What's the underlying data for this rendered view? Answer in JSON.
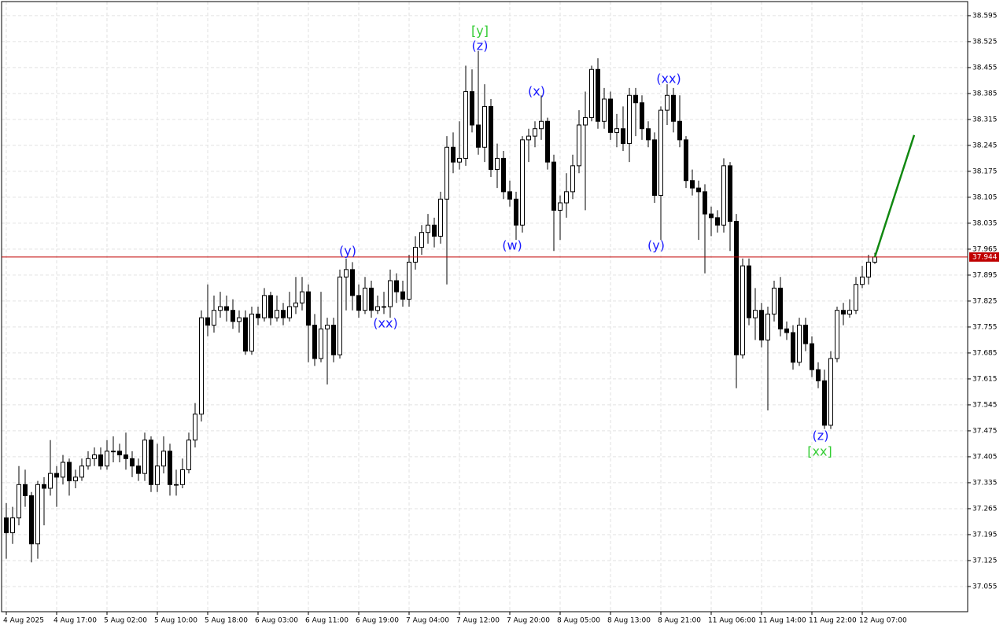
{
  "chart_data": {
    "type": "candlestick",
    "categories": [
      "4 Aug 2025",
      null,
      null,
      null,
      null,
      null,
      null,
      null,
      "4 Aug 17:00",
      null,
      null,
      null,
      null,
      null,
      null,
      null,
      "5 Aug 02:00",
      null,
      null,
      null,
      null,
      null,
      null,
      null,
      "5 Aug 10:00",
      null,
      null,
      null,
      null,
      null,
      null,
      null,
      "5 Aug 18:00",
      null,
      null,
      null,
      null,
      null,
      null,
      null,
      "6 Aug 03:00",
      null,
      null,
      null,
      null,
      null,
      null,
      null,
      "6 Aug 11:00",
      null,
      null,
      null,
      null,
      null,
      null,
      null,
      "6 Aug 19:00",
      null,
      null,
      null,
      null,
      null,
      null,
      null,
      "7 Aug 04:00",
      null,
      null,
      null,
      null,
      null,
      null,
      null,
      "7 Aug 12:00",
      null,
      null,
      null,
      null,
      null,
      null,
      null,
      "7 Aug 20:00",
      null,
      null,
      null,
      null,
      null,
      null,
      null,
      "8 Aug 05:00",
      null,
      null,
      null,
      null,
      null,
      null,
      null,
      "8 Aug 13:00",
      null,
      null,
      null,
      null,
      null,
      null,
      null,
      "8 Aug 21:00",
      null,
      null,
      null,
      null,
      null,
      null,
      null,
      "11 Aug 06:00",
      null,
      null,
      null,
      null,
      null,
      null,
      null,
      "11 Aug 14:00",
      null,
      null,
      null,
      null,
      null,
      null,
      null,
      "11 Aug 22:00",
      null,
      null,
      null,
      null,
      null,
      null,
      null,
      "12 Aug 07:00",
      null,
      null
    ],
    "open": [
      37.24,
      37.2,
      37.24,
      37.33,
      37.3,
      37.17,
      37.33,
      37.32,
      37.36,
      37.35,
      37.39,
      37.34,
      37.35,
      37.38,
      37.4,
      37.41,
      37.38,
      37.42,
      37.42,
      37.41,
      37.4,
      37.38,
      37.36,
      37.45,
      37.33,
      37.38,
      37.42,
      37.33,
      37.33,
      37.37,
      37.45,
      37.52,
      37.78,
      37.76,
      37.8,
      37.81,
      37.8,
      37.77,
      37.78,
      37.69,
      37.79,
      37.78,
      37.84,
      37.78,
      37.8,
      37.78,
      37.81,
      37.82,
      37.85,
      37.76,
      37.67,
      37.75,
      37.76,
      37.68,
      37.89,
      37.91,
      37.84,
      37.8,
      37.86,
      37.8,
      37.81,
      37.81,
      37.88,
      37.85,
      37.83,
      37.93,
      37.97,
      38.01,
      38.03,
      38.0,
      38.1,
      38.24,
      38.2,
      38.21,
      38.39,
      38.3,
      38.24,
      38.35,
      38.18,
      38.21,
      38.12,
      38.1,
      38.03,
      38.26,
      38.27,
      38.29,
      38.31,
      38.2,
      38.07,
      38.09,
      38.12,
      38.19,
      38.3,
      38.32,
      38.45,
      38.31,
      38.37,
      38.28,
      38.29,
      38.25,
      38.38,
      38.36,
      38.29,
      38.26,
      38.11,
      38.34,
      38.38,
      38.31,
      38.26,
      38.15,
      38.13,
      38.12,
      38.06,
      38.05,
      38.03,
      38.19,
      38.04,
      37.68,
      37.92,
      37.78,
      37.8,
      37.72,
      37.79,
      37.86,
      37.75,
      37.74,
      37.66,
      37.76,
      37.71,
      37.64,
      37.61,
      37.49,
      37.67,
      37.8,
      37.79,
      37.8,
      37.87,
      37.89,
      37.93
    ],
    "high": [
      37.28,
      37.27,
      37.38,
      37.37,
      37.31,
      37.34,
      37.35,
      37.45,
      37.38,
      37.41,
      37.4,
      37.37,
      37.4,
      37.42,
      37.43,
      37.43,
      37.45,
      37.46,
      37.44,
      37.47,
      37.42,
      37.4,
      37.47,
      37.46,
      37.44,
      37.46,
      37.44,
      37.37,
      37.4,
      37.47,
      37.55,
      37.8,
      37.87,
      37.84,
      37.85,
      37.84,
      37.83,
      37.8,
      37.8,
      37.81,
      37.81,
      37.86,
      37.85,
      37.84,
      37.82,
      37.85,
      37.89,
      37.89,
      37.87,
      37.79,
      37.85,
      37.78,
      37.78,
      37.91,
      37.94,
      37.93,
      37.87,
      37.89,
      37.88,
      37.84,
      37.85,
      37.91,
      37.9,
      37.88,
      37.95,
      38.0,
      38.03,
      38.06,
      38.05,
      38.12,
      38.27,
      38.28,
      38.31,
      38.46,
      38.45,
      38.5,
      38.41,
      38.37,
      38.25,
      38.23,
      38.15,
      38.12,
      38.27,
      38.29,
      38.31,
      38.38,
      38.32,
      38.22,
      38.11,
      38.17,
      38.22,
      38.34,
      38.39,
      38.46,
      38.48,
      38.4,
      38.39,
      38.33,
      38.35,
      38.4,
      38.4,
      38.38,
      38.31,
      38.28,
      38.35,
      38.41,
      38.4,
      38.38,
      38.27,
      38.18,
      38.15,
      38.14,
      38.08,
      38.07,
      38.21,
      38.2,
      38.06,
      37.94,
      37.94,
      37.86,
      37.82,
      37.81,
      37.88,
      37.89,
      37.77,
      37.76,
      37.78,
      37.78,
      37.73,
      37.66,
      37.64,
      37.69,
      37.81,
      37.82,
      37.83,
      37.89,
      37.92,
      37.95,
      37.955
    ],
    "low": [
      37.13,
      37.17,
      37.22,
      37.27,
      37.12,
      37.13,
      37.22,
      37.3,
      37.27,
      37.33,
      37.3,
      37.32,
      37.34,
      37.37,
      37.38,
      37.37,
      37.37,
      37.39,
      37.39,
      37.37,
      37.35,
      37.34,
      37.34,
      37.31,
      37.31,
      37.36,
      37.3,
      37.3,
      37.32,
      37.36,
      37.43,
      37.5,
      37.73,
      37.74,
      37.78,
      37.77,
      37.75,
      37.74,
      37.68,
      37.68,
      37.76,
      37.77,
      37.76,
      37.77,
      37.76,
      37.77,
      37.79,
      37.8,
      37.66,
      37.65,
      37.66,
      37.6,
      37.66,
      37.67,
      37.8,
      37.8,
      37.78,
      37.79,
      37.78,
      37.79,
      37.79,
      37.78,
      37.82,
      37.81,
      37.81,
      37.91,
      37.95,
      37.98,
      37.97,
      37.98,
      37.87,
      38.17,
      38.18,
      38.19,
      38.28,
      38.22,
      38.2,
      38.16,
      38.13,
      38.1,
      38.08,
      37.99,
      38.01,
      38.2,
      38.24,
      38.26,
      38.18,
      37.96,
      37.99,
      38.05,
      38.1,
      38.17,
      38.07,
      38.31,
      38.29,
      38.29,
      38.26,
      38.24,
      38.23,
      38.2,
      38.27,
      38.26,
      38.24,
      38.09,
      37.99,
      38.3,
      38.28,
      38.24,
      38.13,
      38.11,
      37.99,
      37.9,
      38.0,
      38.01,
      38.01,
      37.96,
      37.59,
      37.67,
      37.76,
      37.72,
      37.7,
      37.53,
      37.77,
      37.73,
      37.72,
      37.64,
      37.65,
      37.69,
      37.62,
      37.59,
      37.48,
      37.48,
      37.66,
      37.76,
      37.78,
      37.79,
      37.86,
      37.87,
      37.925
    ],
    "close": [
      37.2,
      37.24,
      37.33,
      37.3,
      37.17,
      37.33,
      37.32,
      37.36,
      37.35,
      37.39,
      37.34,
      37.35,
      37.38,
      37.4,
      37.41,
      37.38,
      37.42,
      37.42,
      37.41,
      37.4,
      37.38,
      37.36,
      37.45,
      37.33,
      37.38,
      37.42,
      37.33,
      37.33,
      37.37,
      37.45,
      37.52,
      37.78,
      37.76,
      37.8,
      37.81,
      37.8,
      37.77,
      37.78,
      37.69,
      37.79,
      37.78,
      37.84,
      37.78,
      37.8,
      37.78,
      37.81,
      37.82,
      37.85,
      37.76,
      37.67,
      37.75,
      37.76,
      37.68,
      37.89,
      37.91,
      37.84,
      37.8,
      37.86,
      37.8,
      37.81,
      37.81,
      37.88,
      37.85,
      37.83,
      37.93,
      37.97,
      38.01,
      38.03,
      38.0,
      38.1,
      38.24,
      38.2,
      38.21,
      38.39,
      38.3,
      38.24,
      38.35,
      38.18,
      38.21,
      38.12,
      38.1,
      38.03,
      38.26,
      38.27,
      38.29,
      38.31,
      38.2,
      38.07,
      38.09,
      38.12,
      38.19,
      38.3,
      38.32,
      38.45,
      38.31,
      38.37,
      38.28,
      38.29,
      38.25,
      38.38,
      38.36,
      38.29,
      38.26,
      38.11,
      38.34,
      38.38,
      38.31,
      38.26,
      38.15,
      38.13,
      38.12,
      38.06,
      38.05,
      38.03,
      38.19,
      38.04,
      37.68,
      37.92,
      37.78,
      37.8,
      37.72,
      37.79,
      37.86,
      37.75,
      37.74,
      37.66,
      37.76,
      37.71,
      37.64,
      37.61,
      37.49,
      37.67,
      37.8,
      37.79,
      37.8,
      37.87,
      37.89,
      37.93,
      37.944
    ],
    "ylim": [
      36.987,
      38.633
    ],
    "yticks": [
      37.055,
      37.125,
      37.195,
      37.265,
      37.335,
      37.405,
      37.475,
      37.545,
      37.615,
      37.685,
      37.755,
      37.825,
      37.895,
      37.965,
      38.035,
      38.105,
      38.175,
      38.245,
      38.315,
      38.385,
      38.455,
      38.525,
      38.595
    ],
    "grid": true,
    "current_price": {
      "value": 37.944,
      "label": "37.944",
      "color": "#c00000"
    },
    "projection": {
      "from": 37.944,
      "to": 38.273,
      "color": "#118811"
    },
    "annotations": [
      {
        "text": "[y]",
        "color": "#33cc33"
      },
      {
        "text": "(z)",
        "color": "#1a1aff"
      },
      {
        "text": "(x)",
        "color": "#1a1aff"
      },
      {
        "text": "(xx)",
        "color": "#1a1aff"
      },
      {
        "text": "(y)",
        "color": "#1a1aff"
      },
      {
        "text": "(xx)",
        "color": "#1a1aff"
      },
      {
        "text": "(w)",
        "color": "#1a1aff"
      },
      {
        "text": "(y)",
        "color": "#1a1aff"
      },
      {
        "text": "(z)",
        "color": "#1a1aff"
      },
      {
        "text": "[xx]",
        "color": "#33cc33"
      }
    ]
  }
}
